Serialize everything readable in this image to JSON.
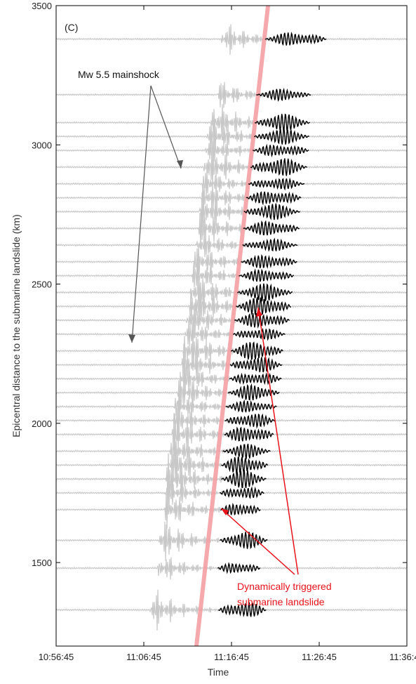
{
  "chart_data": {
    "type": "line",
    "panel_label": "(C)",
    "xlabel": "Time",
    "ylabel": "Epicentral distance to the submarine landslide (km)",
    "x_ticks": [
      "10:56:45",
      "11:06:45",
      "11:16:45",
      "11:26:45",
      "11:36:45"
    ],
    "x_tick_seconds": [
      0,
      600,
      1200,
      1800,
      2400
    ],
    "xlim_seconds": [
      0,
      2400
    ],
    "y_ticks": [
      1500,
      2000,
      2500,
      3000,
      3500
    ],
    "ylim": [
      1200,
      3500
    ],
    "grid": false,
    "stations_km": [
      1330,
      1480,
      1580,
      1690,
      1750,
      1800,
      1850,
      1900,
      1960,
      2010,
      2060,
      2110,
      2160,
      2210,
      2260,
      2320,
      2370,
      2420,
      2470,
      2530,
      2580,
      2640,
      2700,
      2760,
      2810,
      2860,
      2920,
      2980,
      3030,
      3080,
      3180,
      3380
    ],
    "mainshock_arrival_seconds": [
      640,
      695,
      700,
      740,
      745,
      750,
      770,
      780,
      790,
      800,
      810,
      830,
      850,
      860,
      870,
      880,
      890,
      910,
      920,
      930,
      940,
      960,
      970,
      980,
      990,
      1000,
      1010,
      1020,
      1030,
      1060,
      1100,
      1130
    ],
    "landslide_window_seconds": [
      [
        1110,
        1440
      ],
      [
        1105,
        1400
      ],
      [
        1120,
        1450
      ],
      [
        1125,
        1400
      ],
      [
        1120,
        1425
      ],
      [
        1130,
        1440
      ],
      [
        1130,
        1450
      ],
      [
        1140,
        1470
      ],
      [
        1150,
        1490
      ],
      [
        1155,
        1500
      ],
      [
        1160,
        1510
      ],
      [
        1175,
        1530
      ],
      [
        1185,
        1545
      ],
      [
        1190,
        1550
      ],
      [
        1195,
        1555
      ],
      [
        1210,
        1570
      ],
      [
        1220,
        1600
      ],
      [
        1230,
        1610
      ],
      [
        1240,
        1620
      ],
      [
        1250,
        1630
      ],
      [
        1265,
        1650
      ],
      [
        1275,
        1655
      ],
      [
        1280,
        1665
      ],
      [
        1285,
        1670
      ],
      [
        1300,
        1680
      ],
      [
        1315,
        1700
      ],
      [
        1330,
        1720
      ],
      [
        1345,
        1730
      ],
      [
        1355,
        1735
      ],
      [
        1360,
        1740
      ],
      [
        1370,
        1745
      ],
      [
        1430,
        1850
      ]
    ],
    "moveout_line": {
      "x_seconds": [
        960,
        1450
      ],
      "y_km": [
        1200,
        3500
      ],
      "color": "#f4a0a3"
    },
    "colors": {
      "background_trace": "#c8c8c8",
      "landslide_signal": "#000000",
      "annotation_red": "#e8121b",
      "annotation_gray": "#555555"
    }
  },
  "annotations": {
    "mainshock_label": "Mw 5.5 mainshock",
    "landslide_label_line1": "Dynamically triggered",
    "landslide_label_line2": "submarine landslide"
  }
}
